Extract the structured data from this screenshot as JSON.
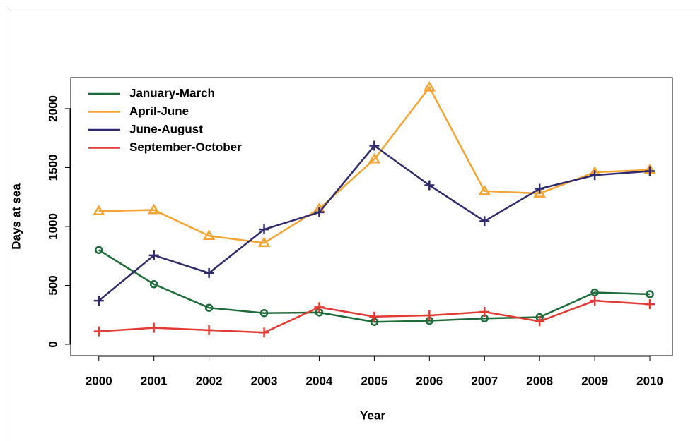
{
  "chart_data": {
    "type": "line",
    "xlabel": "Year",
    "ylabel": "Days at sea",
    "x": [
      2000,
      2001,
      2002,
      2003,
      2004,
      2005,
      2006,
      2007,
      2008,
      2009,
      2010
    ],
    "series": [
      {
        "name": "January-March",
        "color": "#1e6b3a",
        "marker": "circle",
        "values": [
          800,
          510,
          310,
          265,
          270,
          190,
          200,
          220,
          230,
          440,
          425
        ]
      },
      {
        "name": "April-June",
        "color": "#f5a431",
        "marker": "triangle",
        "values": [
          1130,
          1140,
          920,
          860,
          1150,
          1570,
          2180,
          1300,
          1280,
          1460,
          1480
        ]
      },
      {
        "name": "June-August",
        "color": "#2e2a6b",
        "marker": "plus",
        "values": [
          370,
          755,
          605,
          975,
          1120,
          1685,
          1350,
          1045,
          1320,
          1435,
          1470
        ]
      },
      {
        "name": "September-October",
        "color": "#e23b33",
        "marker": "plus",
        "values": [
          110,
          140,
          120,
          100,
          315,
          235,
          245,
          275,
          195,
          370,
          340
        ]
      }
    ],
    "xlim": [
      1999.49,
      2010.41
    ],
    "ylim": [
      -96,
      2263
    ],
    "xticks": [
      2000,
      2001,
      2002,
      2003,
      2004,
      2005,
      2006,
      2007,
      2008,
      2009,
      2010
    ],
    "yticks": [
      0,
      500,
      1000,
      1500,
      2000
    ],
    "legend": "top-left"
  }
}
